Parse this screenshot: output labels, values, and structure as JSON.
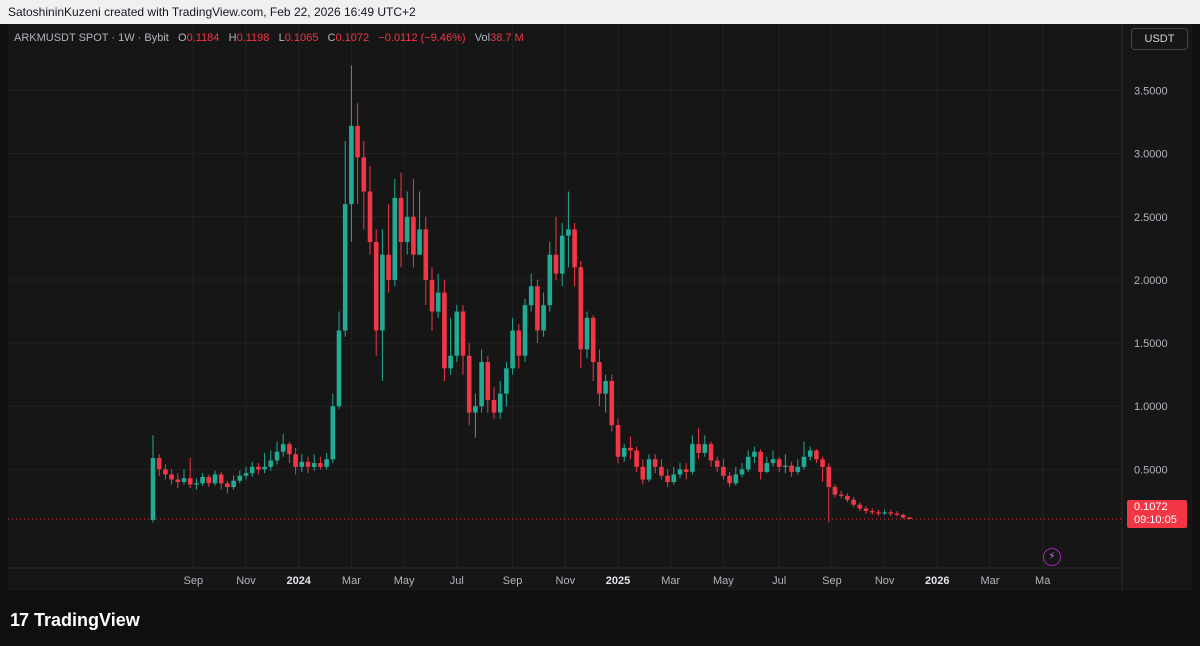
{
  "header": {
    "attribution": "SatoshininKuzeni created with TradingView.com, Feb 22, 2026 16:49 UTC+2"
  },
  "legend": {
    "symbol": "ARKMUSDT SPOT · 1W · Bybit",
    "o_label": "O",
    "o_value": "0.1184",
    "h_label": "H",
    "h_value": "0.1198",
    "l_label": "L",
    "l_value": "0.1065",
    "c_label": "C",
    "c_value": "0.1072",
    "change": "−0.0112 (−9.46%)",
    "vol_label": "Vol",
    "vol_value": "38.7 M"
  },
  "currency_button": "USDT",
  "last_price": {
    "price": "0.1072",
    "countdown": "09:10:05"
  },
  "brand": {
    "name": "TradingView",
    "mark": "17"
  },
  "colors": {
    "up": "#22ab94",
    "down": "#f23645",
    "background": "#161616",
    "grid": "#222222",
    "axis_text": "#b2b5be"
  },
  "chart_data": {
    "type": "candlestick",
    "interval": "1W",
    "ylim": [
      -0.6,
      3.9
    ],
    "y_ticks": [
      {
        "value": 3.5,
        "label": "3.5000"
      },
      {
        "value": 3.0,
        "label": "3.0000"
      },
      {
        "value": 2.5,
        "label": "2.5000"
      },
      {
        "value": 2.0,
        "label": "2.0000"
      },
      {
        "value": 1.5,
        "label": "1.5000"
      },
      {
        "value": 1.0,
        "label": "1.0000"
      },
      {
        "value": 0.5,
        "label": "0.5000"
      }
    ],
    "x_ticks": [
      {
        "index": 6.5,
        "label": "Sep",
        "bold": false
      },
      {
        "index": 15,
        "label": "Nov",
        "bold": false
      },
      {
        "index": 23.5,
        "label": "2024",
        "bold": true
      },
      {
        "index": 32,
        "label": "Mar",
        "bold": false
      },
      {
        "index": 40.5,
        "label": "May",
        "bold": false
      },
      {
        "index": 49,
        "label": "Jul",
        "bold": false
      },
      {
        "index": 58,
        "label": "Sep",
        "bold": false
      },
      {
        "index": 66.5,
        "label": "Nov",
        "bold": false
      },
      {
        "index": 75,
        "label": "2025",
        "bold": true
      },
      {
        "index": 83.5,
        "label": "Mar",
        "bold": false
      },
      {
        "index": 92,
        "label": "May",
        "bold": false
      },
      {
        "index": 101,
        "label": "Jul",
        "bold": false
      },
      {
        "index": 109.5,
        "label": "Sep",
        "bold": false
      },
      {
        "index": 118,
        "label": "Nov",
        "bold": false
      },
      {
        "index": 126.5,
        "label": "2026",
        "bold": true
      },
      {
        "index": 135,
        "label": "Mar",
        "bold": false
      },
      {
        "index": 143.5,
        "label": "Ma",
        "bold": false
      }
    ],
    "last_price": 0.1072,
    "candles": [
      [
        0.1,
        0.59,
        0.77,
        0.08
      ],
      [
        0.59,
        0.5,
        0.62,
        0.45
      ],
      [
        0.5,
        0.46,
        0.54,
        0.42
      ],
      [
        0.46,
        0.42,
        0.5,
        0.38
      ],
      [
        0.42,
        0.4,
        0.47,
        0.35
      ],
      [
        0.4,
        0.43,
        0.5,
        0.38
      ],
      [
        0.43,
        0.38,
        0.59,
        0.35
      ],
      [
        0.38,
        0.39,
        0.43,
        0.34
      ],
      [
        0.39,
        0.44,
        0.47,
        0.37
      ],
      [
        0.44,
        0.39,
        0.46,
        0.36
      ],
      [
        0.39,
        0.46,
        0.49,
        0.37
      ],
      [
        0.46,
        0.39,
        0.48,
        0.34
      ],
      [
        0.39,
        0.36,
        0.41,
        0.31
      ],
      [
        0.36,
        0.41,
        0.45,
        0.34
      ],
      [
        0.41,
        0.45,
        0.49,
        0.39
      ],
      [
        0.45,
        0.47,
        0.52,
        0.42
      ],
      [
        0.47,
        0.52,
        0.56,
        0.44
      ],
      [
        0.52,
        0.5,
        0.55,
        0.46
      ],
      [
        0.5,
        0.52,
        0.63,
        0.47
      ],
      [
        0.52,
        0.57,
        0.65,
        0.49
      ],
      [
        0.57,
        0.64,
        0.72,
        0.54
      ],
      [
        0.64,
        0.7,
        0.78,
        0.6
      ],
      [
        0.7,
        0.62,
        0.72,
        0.55
      ],
      [
        0.62,
        0.52,
        0.67,
        0.46
      ],
      [
        0.52,
        0.56,
        0.62,
        0.48
      ],
      [
        0.56,
        0.52,
        0.6,
        0.47
      ],
      [
        0.52,
        0.55,
        0.62,
        0.49
      ],
      [
        0.55,
        0.52,
        0.6,
        0.5
      ],
      [
        0.52,
        0.58,
        0.63,
        0.5
      ],
      [
        0.58,
        1.0,
        1.1,
        0.55
      ],
      [
        1.0,
        1.6,
        1.75,
        0.98
      ],
      [
        1.6,
        2.6,
        3.1,
        1.55
      ],
      [
        2.6,
        3.22,
        3.7,
        2.3
      ],
      [
        3.22,
        2.97,
        3.4,
        2.6
      ],
      [
        2.97,
        2.7,
        3.1,
        2.4
      ],
      [
        2.7,
        2.3,
        2.9,
        2.2
      ],
      [
        2.3,
        1.6,
        2.4,
        1.4
      ],
      [
        1.6,
        2.2,
        2.4,
        1.2
      ],
      [
        2.2,
        2.0,
        2.6,
        1.9
      ],
      [
        2.0,
        2.65,
        2.8,
        1.95
      ],
      [
        2.65,
        2.3,
        2.85,
        2.1
      ],
      [
        2.3,
        2.5,
        2.7,
        2.2
      ],
      [
        2.5,
        2.2,
        2.8,
        2.1
      ],
      [
        2.2,
        2.4,
        2.7,
        2.2
      ],
      [
        2.4,
        2.0,
        2.5,
        1.8
      ],
      [
        2.0,
        1.75,
        2.1,
        1.6
      ],
      [
        1.75,
        1.9,
        2.05,
        1.7
      ],
      [
        1.9,
        1.3,
        2.0,
        1.2
      ],
      [
        1.3,
        1.4,
        1.7,
        1.25
      ],
      [
        1.4,
        1.75,
        1.8,
        1.35
      ],
      [
        1.75,
        1.4,
        1.8,
        1.25
      ],
      [
        1.4,
        0.95,
        1.5,
        0.85
      ],
      [
        0.95,
        1.0,
        1.1,
        0.75
      ],
      [
        1.0,
        1.35,
        1.45,
        0.95
      ],
      [
        1.35,
        1.05,
        1.4,
        0.95
      ],
      [
        1.05,
        0.95,
        1.15,
        0.9
      ],
      [
        0.95,
        1.1,
        1.2,
        0.9
      ],
      [
        1.1,
        1.3,
        1.35,
        1.0
      ],
      [
        1.3,
        1.6,
        1.7,
        1.25
      ],
      [
        1.6,
        1.4,
        1.65,
        1.3
      ],
      [
        1.4,
        1.8,
        1.85,
        1.35
      ],
      [
        1.8,
        1.95,
        2.05,
        1.75
      ],
      [
        1.95,
        1.6,
        2.0,
        1.5
      ],
      [
        1.6,
        1.8,
        1.9,
        1.55
      ],
      [
        1.8,
        2.2,
        2.3,
        1.75
      ],
      [
        2.2,
        2.05,
        2.5,
        2.0
      ],
      [
        2.05,
        2.35,
        2.45,
        1.95
      ],
      [
        2.35,
        2.4,
        2.7,
        2.1
      ],
      [
        2.4,
        2.1,
        2.45,
        1.95
      ],
      [
        2.1,
        1.45,
        2.15,
        1.3
      ],
      [
        1.45,
        1.7,
        1.75,
        1.38
      ],
      [
        1.7,
        1.35,
        1.72,
        1.2
      ],
      [
        1.35,
        1.1,
        1.45,
        1.0
      ],
      [
        1.1,
        1.2,
        1.25,
        0.95
      ],
      [
        1.2,
        0.85,
        1.25,
        0.8
      ],
      [
        0.85,
        0.6,
        0.9,
        0.55
      ],
      [
        0.6,
        0.67,
        0.7,
        0.56
      ],
      [
        0.67,
        0.65,
        0.76,
        0.58
      ],
      [
        0.65,
        0.52,
        0.68,
        0.48
      ],
      [
        0.52,
        0.42,
        0.58,
        0.38
      ],
      [
        0.42,
        0.58,
        0.62,
        0.4
      ],
      [
        0.58,
        0.52,
        0.62,
        0.47
      ],
      [
        0.52,
        0.45,
        0.58,
        0.42
      ],
      [
        0.45,
        0.4,
        0.5,
        0.36
      ],
      [
        0.4,
        0.46,
        0.52,
        0.38
      ],
      [
        0.46,
        0.5,
        0.55,
        0.43
      ],
      [
        0.5,
        0.48,
        0.55,
        0.42
      ],
      [
        0.48,
        0.7,
        0.77,
        0.46
      ],
      [
        0.7,
        0.63,
        0.83,
        0.58
      ],
      [
        0.63,
        0.7,
        0.77,
        0.6
      ],
      [
        0.7,
        0.57,
        0.72,
        0.52
      ],
      [
        0.57,
        0.52,
        0.6,
        0.48
      ],
      [
        0.52,
        0.45,
        0.58,
        0.42
      ],
      [
        0.45,
        0.39,
        0.48,
        0.36
      ],
      [
        0.39,
        0.46,
        0.52,
        0.37
      ],
      [
        0.46,
        0.5,
        0.55,
        0.44
      ],
      [
        0.5,
        0.6,
        0.65,
        0.48
      ],
      [
        0.6,
        0.64,
        0.68,
        0.55
      ],
      [
        0.64,
        0.48,
        0.66,
        0.42
      ],
      [
        0.48,
        0.55,
        0.6,
        0.47
      ],
      [
        0.55,
        0.58,
        0.65,
        0.52
      ],
      [
        0.58,
        0.52,
        0.6,
        0.48
      ],
      [
        0.52,
        0.53,
        0.62,
        0.47
      ],
      [
        0.53,
        0.48,
        0.56,
        0.44
      ],
      [
        0.48,
        0.52,
        0.58,
        0.46
      ],
      [
        0.52,
        0.6,
        0.72,
        0.5
      ],
      [
        0.6,
        0.65,
        0.68,
        0.57
      ],
      [
        0.65,
        0.58,
        0.66,
        0.55
      ],
      [
        0.58,
        0.52,
        0.6,
        0.4
      ],
      [
        0.52,
        0.36,
        0.55,
        0.08
      ],
      [
        0.36,
        0.3,
        0.38,
        0.28
      ],
      [
        0.3,
        0.29,
        0.33,
        0.27
      ],
      [
        0.29,
        0.26,
        0.31,
        0.24
      ],
      [
        0.26,
        0.22,
        0.28,
        0.2
      ],
      [
        0.22,
        0.19,
        0.24,
        0.17
      ],
      [
        0.19,
        0.17,
        0.21,
        0.15
      ],
      [
        0.17,
        0.16,
        0.19,
        0.14
      ],
      [
        0.16,
        0.15,
        0.18,
        0.13
      ],
      [
        0.15,
        0.16,
        0.18,
        0.14
      ],
      [
        0.16,
        0.15,
        0.18,
        0.13
      ],
      [
        0.15,
        0.14,
        0.17,
        0.13
      ],
      [
        0.14,
        0.12,
        0.15,
        0.11
      ],
      [
        0.12,
        0.1072,
        0.1198,
        0.1065
      ]
    ]
  }
}
